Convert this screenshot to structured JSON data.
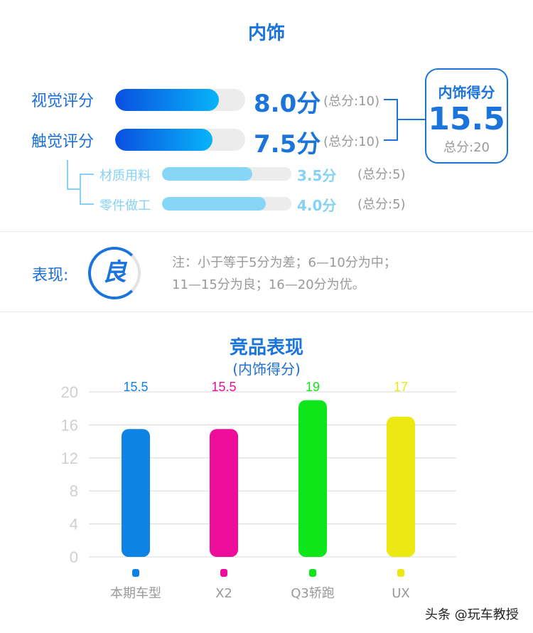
{
  "title": "内饰",
  "main_scores": [
    {
      "label": "视觉评分",
      "value": 8.0,
      "value_text": "8.0分",
      "max_text": "(总分:10)",
      "max": 10
    },
    {
      "label": "触觉评分",
      "value": 7.5,
      "value_text": "7.5分",
      "max_text": "(总分:10)",
      "max": 10
    }
  ],
  "sub_scores": [
    {
      "label": "材质用料",
      "value": 3.5,
      "value_text": "3.5分",
      "max_text": "(总分:5)",
      "max": 5
    },
    {
      "label": "零件做工",
      "value": 4.0,
      "value_text": "4.0分",
      "max_text": "(总分:5)",
      "max": 5
    }
  ],
  "total": {
    "title": "内饰得分",
    "value": "15.5",
    "max_text": "总分:20"
  },
  "performance": {
    "label": "表现:",
    "grade": "良",
    "note_line1": "注：小于等于5分为差；6—10分为中；",
    "note_line2": "11—15分为良；16—20分为优。"
  },
  "colors": {
    "accent": "#1b74dc",
    "light": "#86d2f5"
  },
  "chart_data": {
    "type": "bar",
    "title": "竞品表现",
    "subtitle": "(内饰得分)",
    "categories": [
      "本期车型",
      "X2",
      "Q3轿跑",
      "UX"
    ],
    "values": [
      15.5,
      15.5,
      19,
      17
    ],
    "value_labels": [
      "15.5",
      "15.5",
      "19",
      "17"
    ],
    "colors": [
      "#0f82e6",
      "#ee0c9a",
      "#0ee61a",
      "#ebe812"
    ],
    "yticks": [
      "0",
      "4",
      "8",
      "12",
      "16",
      "20"
    ],
    "ylim": [
      0,
      20
    ],
    "grid": true
  },
  "watermark": "头条 @玩车教授"
}
